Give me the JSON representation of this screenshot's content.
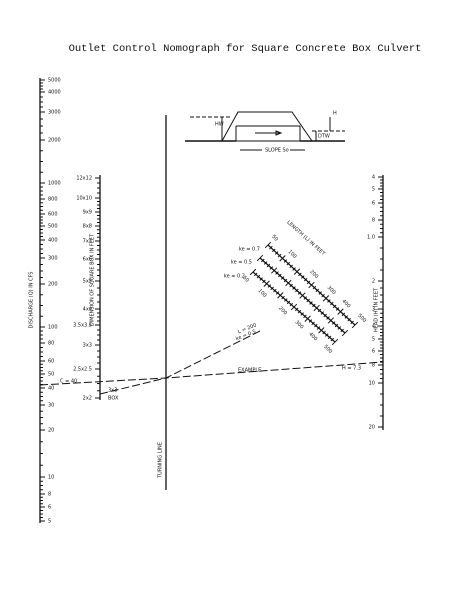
{
  "title": "Outlet Control Nomograph for Square Concrete Box Culvert",
  "discharge_scale": {
    "label": "DISCHARGE (Q) IN CFS",
    "ticks": [
      "5000",
      "4000",
      "3000",
      "2000",
      "1000",
      "800",
      "600",
      "500",
      "400",
      "300",
      "200",
      "100",
      "80",
      "60",
      "50",
      "40",
      "30",
      "20",
      "10",
      "8",
      "6",
      "5"
    ]
  },
  "box_scale": {
    "label": "DIMENSION OF SQUARE BOX IN FEET",
    "ticks": [
      "12x12",
      "10x10",
      "9x9",
      "8x8",
      "7x7",
      "6x6",
      "5x5",
      "4x4",
      "3.5x3.5",
      "3x3",
      "2.5x2.5",
      "2x2"
    ]
  },
  "turning_line": {
    "label": "TURNING LINE"
  },
  "head_scale": {
    "label": "HEAD (H) IN FEET",
    "ticks": [
      "4",
      "5",
      "6",
      "8",
      "1.0",
      "2",
      "3",
      "4",
      "5",
      "6",
      "8",
      "10",
      "20"
    ]
  },
  "length_scale": {
    "label": "LENGTH (L) IN FEET",
    "scales": [
      {
        "ke": "ke = 0.7",
        "ticks": [
          "50",
          "100",
          "200",
          "300",
          "400",
          "500"
        ]
      },
      {
        "ke": "ke = 0.5"
      },
      {
        "ke": "ke = 0.2",
        "ticks": [
          "50",
          "100",
          "200",
          "300",
          "400",
          "500"
        ]
      }
    ]
  },
  "example": {
    "discharge": "C = 40",
    "label": "EXAMPLE",
    "head": "H = 7.3",
    "box": "3x3",
    "box_label": "BOX",
    "length": "L = 200",
    "ke": "ke = 0.5"
  },
  "inset": {
    "hw": "HW",
    "h": "H",
    "dtw": "DTW",
    "slope": "SLOPE So"
  }
}
